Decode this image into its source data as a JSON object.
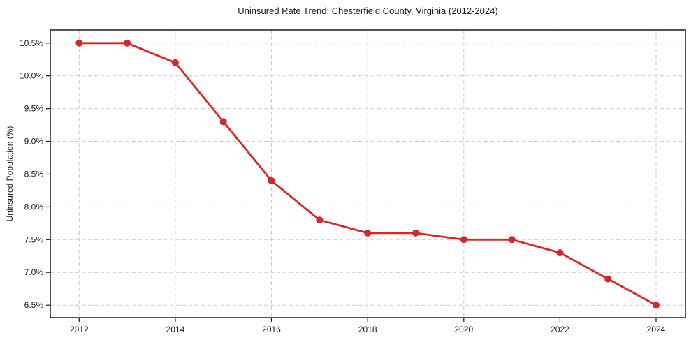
{
  "figure": {
    "title": "Uninsured Rate Trend: Chesterfield County, Virginia (2012-2024)",
    "y_axis_label": "Uninsured Population (%)"
  },
  "chart_data": {
    "type": "line",
    "title": "Uninsured Rate Trend: Chesterfield County, Virginia (2012-2024)",
    "xlabel": "",
    "ylabel": "Uninsured Population (%)",
    "x": [
      2012,
      2013,
      2014,
      2015,
      2016,
      2017,
      2018,
      2019,
      2020,
      2021,
      2022,
      2023,
      2024
    ],
    "values": [
      10.5,
      10.5,
      10.2,
      9.3,
      8.4,
      7.8,
      7.6,
      7.6,
      7.5,
      7.5,
      7.3,
      6.9,
      6.5
    ],
    "xlim": [
      2011.4,
      2024.61
    ],
    "ylim": [
      6.31,
      10.7
    ],
    "x_ticks": {
      "values": [
        2012,
        2014,
        2016,
        2018,
        2020,
        2022,
        2024
      ],
      "labels": [
        "2012",
        "2014",
        "2016",
        "2018",
        "2020",
        "2022",
        "2024"
      ]
    },
    "y_ticks": {
      "values": [
        6.5,
        7.0,
        7.5,
        8.0,
        8.5,
        9.0,
        9.5,
        10.0,
        10.5
      ],
      "labels": [
        "6.5%",
        "7.0%",
        "7.5%",
        "8.0%",
        "8.5%",
        "9.0%",
        "9.5%",
        "10.0%",
        "10.5%"
      ]
    },
    "grid": true,
    "legend_position": "none",
    "colors": {
      "line": "#d62728",
      "marker": "#d62728",
      "grid": "#cccccc",
      "spine": "#1a1a1a",
      "text": "#1a1a1a",
      "background": "#ffffff"
    }
  }
}
